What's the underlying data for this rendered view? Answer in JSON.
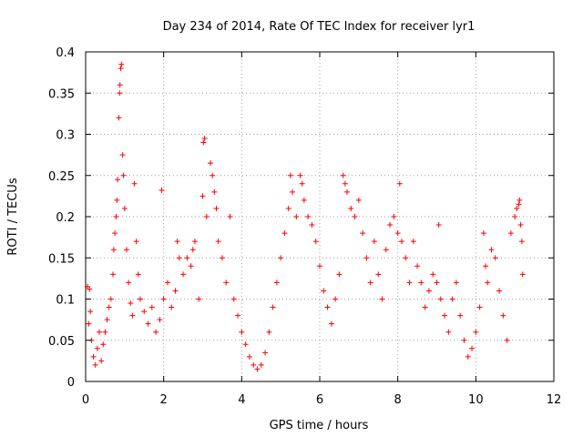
{
  "chart_data": {
    "type": "scatter",
    "title": "Day 234 of 2014, Rate Of TEC Index for receiver lyr1",
    "xlabel": "GPS time / hours",
    "ylabel": "ROTI / TECUs",
    "xlim": [
      0,
      12
    ],
    "ylim": [
      0,
      0.4
    ],
    "xticks": [
      0,
      2,
      4,
      6,
      8,
      10,
      12
    ],
    "yticks": [
      0,
      0.05,
      0.1,
      0.15,
      0.2,
      0.25,
      0.3,
      0.35,
      0.4
    ],
    "xtick_labels": [
      "0",
      "2",
      "4",
      "6",
      "8",
      "10",
      "12"
    ],
    "ytick_labels": [
      "0",
      "0.05",
      "0.1",
      "0.15",
      "0.2",
      "0.25",
      "0.3",
      "0.35",
      "0.4"
    ],
    "grid": true,
    "marker": "+",
    "color": "#ff0000",
    "data_x_range": [
      0.0,
      11.2
    ],
    "series": [
      {
        "name": "ROTI",
        "points": [
          [
            0.05,
            0.115
          ],
          [
            0.1,
            0.112
          ],
          [
            0.12,
            0.085
          ],
          [
            0.08,
            0.07
          ],
          [
            0.15,
            0.05
          ],
          [
            0.2,
            0.03
          ],
          [
            0.25,
            0.02
          ],
          [
            0.3,
            0.04
          ],
          [
            0.35,
            0.06
          ],
          [
            0.4,
            0.025
          ],
          [
            0.45,
            0.045
          ],
          [
            0.5,
            0.06
          ],
          [
            0.55,
            0.075
          ],
          [
            0.6,
            0.09
          ],
          [
            0.65,
            0.1
          ],
          [
            0.7,
            0.13
          ],
          [
            0.72,
            0.16
          ],
          [
            0.75,
            0.18
          ],
          [
            0.78,
            0.2
          ],
          [
            0.8,
            0.22
          ],
          [
            0.82,
            0.245
          ],
          [
            0.85,
            0.32
          ],
          [
            0.87,
            0.35
          ],
          [
            0.88,
            0.36
          ],
          [
            0.9,
            0.38
          ],
          [
            0.92,
            0.385
          ],
          [
            0.95,
            0.275
          ],
          [
            0.97,
            0.25
          ],
          [
            1.0,
            0.21
          ],
          [
            1.05,
            0.16
          ],
          [
            1.1,
            0.12
          ],
          [
            1.15,
            0.095
          ],
          [
            1.2,
            0.08
          ],
          [
            1.25,
            0.24
          ],
          [
            1.3,
            0.17
          ],
          [
            1.35,
            0.13
          ],
          [
            1.4,
            0.1
          ],
          [
            1.5,
            0.085
          ],
          [
            1.6,
            0.07
          ],
          [
            1.7,
            0.09
          ],
          [
            1.8,
            0.06
          ],
          [
            1.9,
            0.075
          ],
          [
            1.95,
            0.232
          ],
          [
            2.0,
            0.1
          ],
          [
            2.1,
            0.12
          ],
          [
            2.2,
            0.09
          ],
          [
            2.3,
            0.11
          ],
          [
            2.35,
            0.17
          ],
          [
            2.4,
            0.15
          ],
          [
            2.5,
            0.13
          ],
          [
            2.6,
            0.15
          ],
          [
            2.7,
            0.14
          ],
          [
            2.75,
            0.16
          ],
          [
            2.8,
            0.17
          ],
          [
            2.9,
            0.1
          ],
          [
            3.0,
            0.225
          ],
          [
            3.02,
            0.29
          ],
          [
            3.05,
            0.295
          ],
          [
            3.1,
            0.2
          ],
          [
            3.2,
            0.265
          ],
          [
            3.25,
            0.25
          ],
          [
            3.3,
            0.23
          ],
          [
            3.35,
            0.21
          ],
          [
            3.4,
            0.17
          ],
          [
            3.5,
            0.15
          ],
          [
            3.6,
            0.12
          ],
          [
            3.7,
            0.2
          ],
          [
            3.8,
            0.1
          ],
          [
            3.9,
            0.08
          ],
          [
            4.0,
            0.06
          ],
          [
            4.1,
            0.045
          ],
          [
            4.2,
            0.03
          ],
          [
            4.3,
            0.02
          ],
          [
            4.4,
            0.015
          ],
          [
            4.5,
            0.02
          ],
          [
            4.6,
            0.035
          ],
          [
            4.7,
            0.06
          ],
          [
            4.8,
            0.09
          ],
          [
            4.9,
            0.12
          ],
          [
            5.0,
            0.15
          ],
          [
            5.1,
            0.18
          ],
          [
            5.2,
            0.21
          ],
          [
            5.25,
            0.25
          ],
          [
            5.3,
            0.23
          ],
          [
            5.4,
            0.2
          ],
          [
            5.5,
            0.25
          ],
          [
            5.55,
            0.24
          ],
          [
            5.6,
            0.22
          ],
          [
            5.7,
            0.2
          ],
          [
            5.8,
            0.19
          ],
          [
            5.9,
            0.17
          ],
          [
            6.0,
            0.14
          ],
          [
            6.1,
            0.11
          ],
          [
            6.2,
            0.09
          ],
          [
            6.3,
            0.07
          ],
          [
            6.4,
            0.1
          ],
          [
            6.5,
            0.13
          ],
          [
            6.6,
            0.25
          ],
          [
            6.65,
            0.24
          ],
          [
            6.7,
            0.23
          ],
          [
            6.8,
            0.21
          ],
          [
            6.9,
            0.2
          ],
          [
            7.0,
            0.22
          ],
          [
            7.1,
            0.18
          ],
          [
            7.2,
            0.15
          ],
          [
            7.3,
            0.12
          ],
          [
            7.4,
            0.17
          ],
          [
            7.5,
            0.13
          ],
          [
            7.6,
            0.1
          ],
          [
            7.7,
            0.16
          ],
          [
            7.8,
            0.19
          ],
          [
            7.9,
            0.2
          ],
          [
            8.0,
            0.18
          ],
          [
            8.05,
            0.24
          ],
          [
            8.1,
            0.17
          ],
          [
            8.2,
            0.15
          ],
          [
            8.3,
            0.12
          ],
          [
            8.4,
            0.17
          ],
          [
            8.5,
            0.14
          ],
          [
            8.6,
            0.12
          ],
          [
            8.7,
            0.09
          ],
          [
            8.8,
            0.11
          ],
          [
            8.9,
            0.13
          ],
          [
            9.0,
            0.12
          ],
          [
            9.05,
            0.19
          ],
          [
            9.1,
            0.1
          ],
          [
            9.2,
            0.08
          ],
          [
            9.3,
            0.06
          ],
          [
            9.4,
            0.1
          ],
          [
            9.5,
            0.12
          ],
          [
            9.6,
            0.08
          ],
          [
            9.7,
            0.05
          ],
          [
            9.8,
            0.03
          ],
          [
            9.9,
            0.04
          ],
          [
            10.0,
            0.06
          ],
          [
            10.1,
            0.09
          ],
          [
            10.2,
            0.18
          ],
          [
            10.25,
            0.14
          ],
          [
            10.3,
            0.12
          ],
          [
            10.4,
            0.16
          ],
          [
            10.5,
            0.15
          ],
          [
            10.6,
            0.11
          ],
          [
            10.7,
            0.08
          ],
          [
            10.8,
            0.05
          ],
          [
            10.9,
            0.18
          ],
          [
            11.0,
            0.2
          ],
          [
            11.05,
            0.21
          ],
          [
            11.1,
            0.215
          ],
          [
            11.12,
            0.22
          ],
          [
            11.15,
            0.19
          ],
          [
            11.18,
            0.17
          ],
          [
            11.2,
            0.13
          ]
        ]
      }
    ]
  }
}
